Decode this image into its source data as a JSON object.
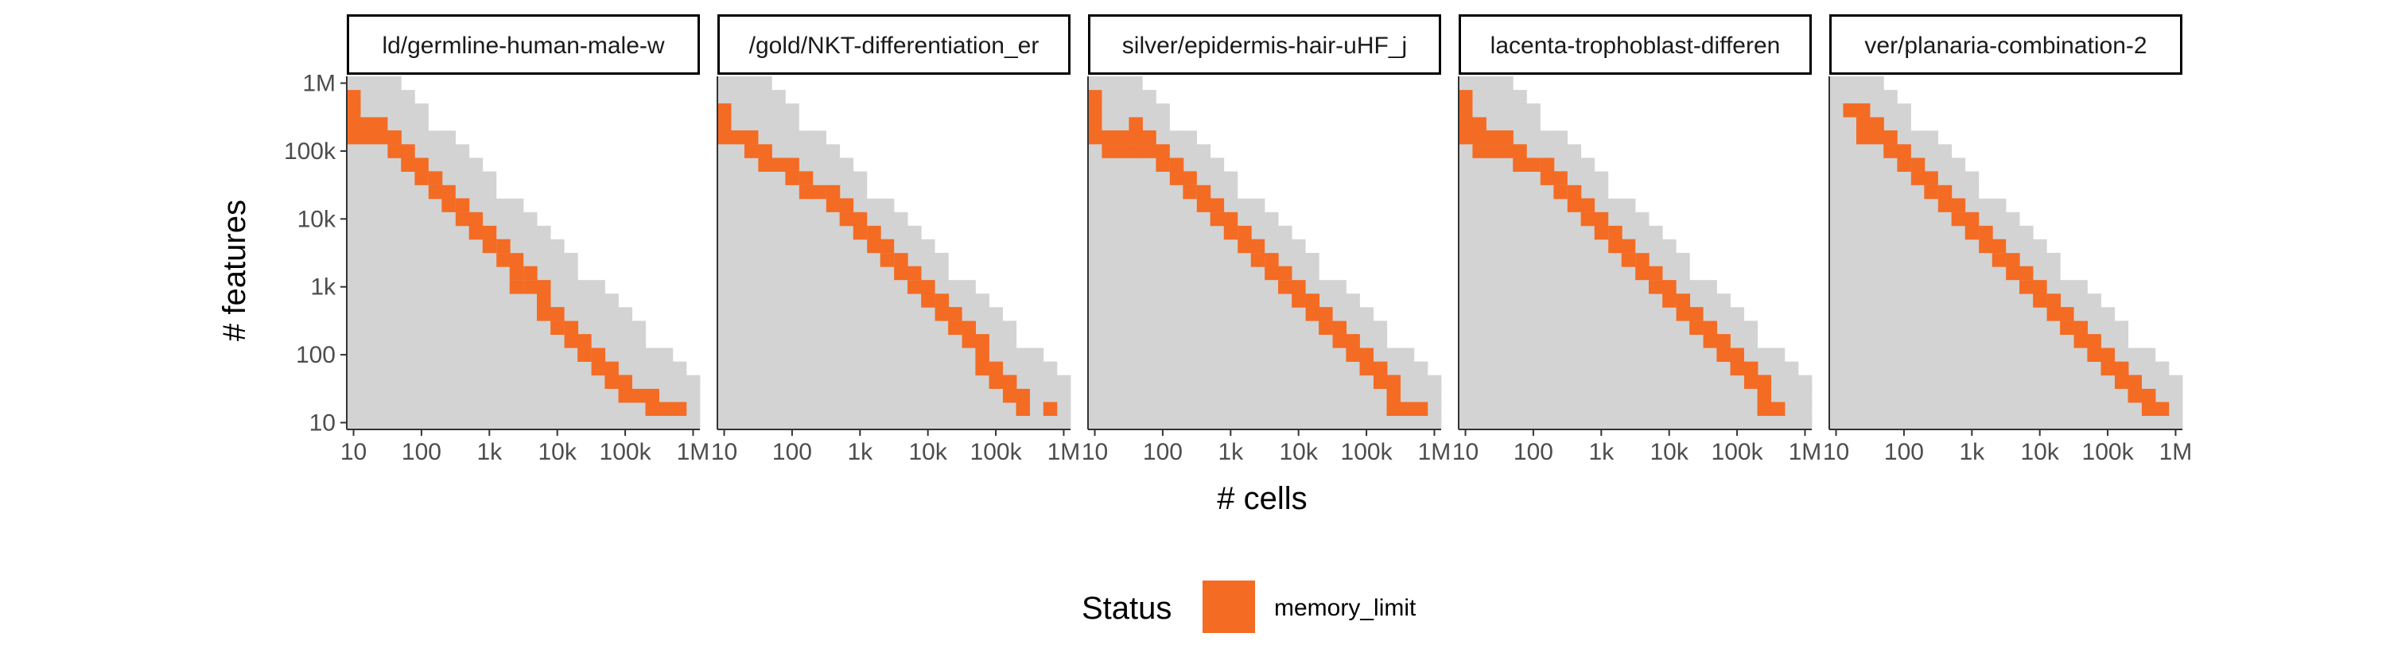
{
  "chart_data": {
    "type": "heatmap",
    "title": "",
    "xlabel": "# cells",
    "ylabel": "# features",
    "x_scale": "log10",
    "y_scale": "log10",
    "xlim": [
      10,
      1000000
    ],
    "ylim": [
      10,
      1000000
    ],
    "x_ticks": [
      {
        "value": 10,
        "label": "10"
      },
      {
        "value": 100,
        "label": "100"
      },
      {
        "value": 1000,
        "label": "1k"
      },
      {
        "value": 10000,
        "label": "10k"
      },
      {
        "value": 100000,
        "label": "100k"
      },
      {
        "value": 1000000,
        "label": "1M"
      }
    ],
    "y_ticks": [
      {
        "value": 10,
        "label": "10"
      },
      {
        "value": 100,
        "label": "100"
      },
      {
        "value": 1000,
        "label": "1k"
      },
      {
        "value": 10000,
        "label": "10k"
      },
      {
        "value": 100000,
        "label": "100k"
      },
      {
        "value": 1000000,
        "label": "1M"
      }
    ],
    "grid": false,
    "background_color": "#d3d3d3",
    "legend": {
      "title": "Status",
      "position": "bottom",
      "entries": [
        {
          "label": "memory_limit",
          "color": "#f46b24"
        }
      ]
    },
    "panels": [
      {
        "label": "ld/germline-human-male-w",
        "memory_limit": [
          [
            10,
            630000
          ],
          [
            10,
            400000
          ],
          [
            10,
            250000
          ],
          [
            10,
            160000
          ],
          [
            16,
            250000
          ],
          [
            16,
            160000
          ],
          [
            25,
            250000
          ],
          [
            25,
            160000
          ],
          [
            40,
            160000
          ],
          [
            40,
            100000
          ],
          [
            63,
            100000
          ],
          [
            63,
            63000
          ],
          [
            100,
            63000
          ],
          [
            100,
            40000
          ],
          [
            160,
            40000
          ],
          [
            160,
            25000
          ],
          [
            250,
            25000
          ],
          [
            250,
            16000
          ],
          [
            400,
            16000
          ],
          [
            400,
            10000
          ],
          [
            630,
            10000
          ],
          [
            630,
            6300
          ],
          [
            1000,
            6300
          ],
          [
            1000,
            4000
          ],
          [
            1600,
            4000
          ],
          [
            1600,
            2500
          ],
          [
            2500,
            2500
          ],
          [
            2500,
            1600
          ],
          [
            2500,
            1000
          ],
          [
            4000,
            1600
          ],
          [
            4000,
            1000
          ],
          [
            6300,
            1000
          ],
          [
            6300,
            630
          ],
          [
            6300,
            400
          ],
          [
            10000,
            400
          ],
          [
            10000,
            250
          ],
          [
            16000,
            250
          ],
          [
            16000,
            160
          ],
          [
            25000,
            160
          ],
          [
            25000,
            100
          ],
          [
            40000,
            100
          ],
          [
            40000,
            63
          ],
          [
            63000,
            63
          ],
          [
            63000,
            40
          ],
          [
            100000,
            40
          ],
          [
            100000,
            25
          ],
          [
            160000,
            25
          ],
          [
            250000,
            25
          ],
          [
            250000,
            16
          ],
          [
            400000,
            16
          ],
          [
            630000,
            16
          ]
        ]
      },
      {
        "label": "/gold/NKT-differentiation_er",
        "memory_limit": [
          [
            10,
            400000
          ],
          [
            10,
            250000
          ],
          [
            10,
            160000
          ],
          [
            16,
            160000
          ],
          [
            25,
            160000
          ],
          [
            25,
            100000
          ],
          [
            40,
            100000
          ],
          [
            40,
            63000
          ],
          [
            63,
            63000
          ],
          [
            100,
            63000
          ],
          [
            100,
            40000
          ],
          [
            160,
            40000
          ],
          [
            160,
            25000
          ],
          [
            250,
            25000
          ],
          [
            400,
            25000
          ],
          [
            400,
            16000
          ],
          [
            630,
            16000
          ],
          [
            630,
            10000
          ],
          [
            1000,
            10000
          ],
          [
            1000,
            6300
          ],
          [
            1600,
            6300
          ],
          [
            1600,
            4000
          ],
          [
            2500,
            4000
          ],
          [
            2500,
            2500
          ],
          [
            4000,
            2500
          ],
          [
            4000,
            1600
          ],
          [
            6300,
            1600
          ],
          [
            6300,
            1000
          ],
          [
            10000,
            1000
          ],
          [
            10000,
            630
          ],
          [
            16000,
            630
          ],
          [
            16000,
            400
          ],
          [
            25000,
            400
          ],
          [
            25000,
            250
          ],
          [
            40000,
            250
          ],
          [
            40000,
            160
          ],
          [
            63000,
            160
          ],
          [
            63000,
            100
          ],
          [
            63000,
            63
          ],
          [
            100000,
            63
          ],
          [
            100000,
            40
          ],
          [
            160000,
            40
          ],
          [
            160000,
            25
          ],
          [
            250000,
            25
          ],
          [
            250000,
            16
          ],
          [
            630000,
            16
          ]
        ]
      },
      {
        "label": "silver/epidermis-hair-uHF_j",
        "memory_limit": [
          [
            10,
            630000
          ],
          [
            10,
            400000
          ],
          [
            10,
            250000
          ],
          [
            10,
            160000
          ],
          [
            16,
            160000
          ],
          [
            16,
            100000
          ],
          [
            25,
            160000
          ],
          [
            25,
            100000
          ],
          [
            40,
            250000
          ],
          [
            40,
            160000
          ],
          [
            40,
            100000
          ],
          [
            63,
            160000
          ],
          [
            63,
            100000
          ],
          [
            100,
            100000
          ],
          [
            100,
            63000
          ],
          [
            160,
            63000
          ],
          [
            160,
            40000
          ],
          [
            250,
            40000
          ],
          [
            250,
            25000
          ],
          [
            400,
            25000
          ],
          [
            400,
            16000
          ],
          [
            630,
            16000
          ],
          [
            630,
            10000
          ],
          [
            1000,
            10000
          ],
          [
            1000,
            6300
          ],
          [
            1600,
            6300
          ],
          [
            1600,
            4000
          ],
          [
            2500,
            4000
          ],
          [
            2500,
            2500
          ],
          [
            4000,
            2500
          ],
          [
            4000,
            1600
          ],
          [
            6300,
            1600
          ],
          [
            6300,
            1000
          ],
          [
            10000,
            1000
          ],
          [
            10000,
            630
          ],
          [
            16000,
            630
          ],
          [
            16000,
            400
          ],
          [
            25000,
            400
          ],
          [
            25000,
            250
          ],
          [
            40000,
            250
          ],
          [
            40000,
            160
          ],
          [
            63000,
            160
          ],
          [
            63000,
            100
          ],
          [
            100000,
            100
          ],
          [
            100000,
            63
          ],
          [
            160000,
            63
          ],
          [
            160000,
            40
          ],
          [
            250000,
            40
          ],
          [
            250000,
            25
          ],
          [
            250000,
            16
          ],
          [
            400000,
            16
          ],
          [
            630000,
            16
          ]
        ]
      },
      {
        "label": "lacenta-trophoblast-differen",
        "memory_limit": [
          [
            10,
            630000
          ],
          [
            10,
            400000
          ],
          [
            10,
            250000
          ],
          [
            10,
            160000
          ],
          [
            16,
            250000
          ],
          [
            16,
            160000
          ],
          [
            16,
            100000
          ],
          [
            25,
            160000
          ],
          [
            25,
            100000
          ],
          [
            40,
            160000
          ],
          [
            40,
            100000
          ],
          [
            63,
            100000
          ],
          [
            63,
            63000
          ],
          [
            100,
            63000
          ],
          [
            160,
            63000
          ],
          [
            160,
            40000
          ],
          [
            250,
            40000
          ],
          [
            250,
            25000
          ],
          [
            400,
            25000
          ],
          [
            400,
            16000
          ],
          [
            630,
            16000
          ],
          [
            630,
            10000
          ],
          [
            1000,
            10000
          ],
          [
            1000,
            6300
          ],
          [
            1600,
            6300
          ],
          [
            1600,
            4000
          ],
          [
            2500,
            4000
          ],
          [
            2500,
            2500
          ],
          [
            4000,
            2500
          ],
          [
            4000,
            1600
          ],
          [
            6300,
            1600
          ],
          [
            6300,
            1000
          ],
          [
            10000,
            1000
          ],
          [
            10000,
            630
          ],
          [
            16000,
            630
          ],
          [
            16000,
            400
          ],
          [
            25000,
            400
          ],
          [
            25000,
            250
          ],
          [
            40000,
            250
          ],
          [
            40000,
            160
          ],
          [
            63000,
            160
          ],
          [
            63000,
            100
          ],
          [
            100000,
            100
          ],
          [
            100000,
            63
          ],
          [
            160000,
            63
          ],
          [
            160000,
            40
          ],
          [
            250000,
            40
          ],
          [
            250000,
            25
          ],
          [
            250000,
            16
          ],
          [
            400000,
            16
          ]
        ]
      },
      {
        "label": "ver/planaria-combination-2",
        "memory_limit": [
          [
            16,
            400000
          ],
          [
            25,
            400000
          ],
          [
            25,
            250000
          ],
          [
            25,
            160000
          ],
          [
            40,
            250000
          ],
          [
            40,
            160000
          ],
          [
            63,
            160000
          ],
          [
            63,
            100000
          ],
          [
            100,
            100000
          ],
          [
            100,
            63000
          ],
          [
            160,
            63000
          ],
          [
            160,
            40000
          ],
          [
            250,
            40000
          ],
          [
            250,
            25000
          ],
          [
            400,
            25000
          ],
          [
            400,
            16000
          ],
          [
            630,
            16000
          ],
          [
            630,
            10000
          ],
          [
            1000,
            10000
          ],
          [
            1000,
            6300
          ],
          [
            1600,
            6300
          ],
          [
            1600,
            4000
          ],
          [
            2500,
            4000
          ],
          [
            2500,
            2500
          ],
          [
            4000,
            2500
          ],
          [
            4000,
            1600
          ],
          [
            6300,
            1600
          ],
          [
            6300,
            1000
          ],
          [
            10000,
            1000
          ],
          [
            10000,
            630
          ],
          [
            16000,
            630
          ],
          [
            16000,
            400
          ],
          [
            25000,
            400
          ],
          [
            25000,
            250
          ],
          [
            40000,
            250
          ],
          [
            40000,
            160
          ],
          [
            63000,
            160
          ],
          [
            63000,
            100
          ],
          [
            100000,
            100
          ],
          [
            100000,
            63
          ],
          [
            160000,
            63
          ],
          [
            160000,
            40
          ],
          [
            250000,
            40
          ],
          [
            250000,
            25
          ],
          [
            400000,
            25
          ],
          [
            400000,
            16
          ],
          [
            630000,
            16
          ]
        ]
      }
    ]
  }
}
